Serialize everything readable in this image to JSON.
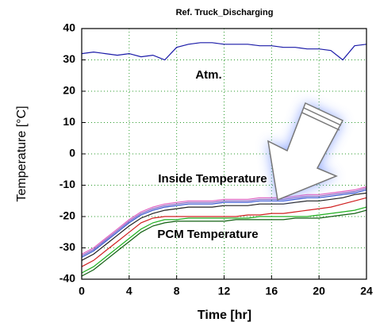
{
  "chart_data": {
    "type": "line",
    "title": "Ref. Truck_Discharging",
    "x_label": "Time [hr]",
    "y_label": "Temperature [°C]",
    "annotations": [
      "Atm.",
      "Inside Temperature",
      "PCM Temperature"
    ],
    "x": [
      0,
      1,
      2,
      3,
      4,
      5,
      6,
      7,
      8,
      9,
      10,
      11,
      12,
      13,
      14,
      15,
      16,
      17,
      18,
      19,
      20,
      21,
      22,
      23,
      24
    ],
    "xlim": [
      0,
      24
    ],
    "xticks": [
      0,
      4,
      8,
      12,
      16,
      20,
      24
    ],
    "ylim": [
      -40,
      40
    ],
    "yticks": [
      -40,
      -30,
      -20,
      -10,
      0,
      10,
      20,
      30,
      40
    ],
    "grid": true,
    "series": [
      {
        "color": "#1a1aa8",
        "values": [
          32,
          32.5,
          32,
          31.5,
          32,
          31,
          31.5,
          30,
          34,
          35,
          35.5,
          35.5,
          35,
          35,
          35,
          34.5,
          34.5,
          34,
          34,
          33.5,
          33.5,
          33,
          30,
          34.5,
          35
        ]
      },
      {
        "color": "#e060c0",
        "values": [
          -32,
          -30,
          -27,
          -24,
          -21,
          -18.5,
          -17,
          -16,
          -15.5,
          -15,
          -15,
          -15,
          -14.5,
          -14.5,
          -14.5,
          -14,
          -14,
          -14,
          -13.5,
          -13,
          -13,
          -12.5,
          -12,
          -11.5,
          -10.5
        ]
      },
      {
        "color": "#8060c0",
        "values": [
          -32.5,
          -30.5,
          -27.5,
          -24.5,
          -21.5,
          -19,
          -17.5,
          -16.5,
          -16,
          -15.5,
          -15.5,
          -15.5,
          -15,
          -15,
          -15,
          -14.5,
          -14.5,
          -14.5,
          -14,
          -13.5,
          -13.5,
          -13,
          -12.5,
          -12,
          -11
        ]
      },
      {
        "color": "#3050d0",
        "values": [
          -33,
          -31,
          -28,
          -25,
          -22,
          -19.5,
          -18,
          -17,
          -16.5,
          -16,
          -16,
          -16,
          -15.5,
          -15.5,
          -15.5,
          -15,
          -15,
          -15,
          -14.5,
          -14,
          -14,
          -13.5,
          -13,
          -12.5,
          -11.5
        ]
      },
      {
        "color": "#202020",
        "values": [
          -34,
          -32,
          -29,
          -26,
          -23,
          -20.5,
          -19,
          -18,
          -17.5,
          -17,
          -17,
          -17,
          -16.5,
          -16.5,
          -16.5,
          -16,
          -16,
          -16,
          -15.5,
          -15,
          -15,
          -14.5,
          -14,
          -13,
          -12.5
        ]
      },
      {
        "color": "#d02020",
        "values": [
          -36,
          -34,
          -31,
          -28,
          -25,
          -22,
          -20.5,
          -20,
          -20,
          -20,
          -20,
          -20,
          -20,
          -20,
          -19.5,
          -19.5,
          -19,
          -19,
          -18.5,
          -18,
          -17.5,
          -17,
          -16,
          -15,
          -14
        ]
      },
      {
        "color": "#20b020",
        "values": [
          -38,
          -36,
          -33,
          -30,
          -27,
          -24,
          -22,
          -21,
          -21,
          -20.5,
          -20.5,
          -20.5,
          -20.5,
          -20.5,
          -20.5,
          -20,
          -20,
          -20,
          -20,
          -20,
          -19.5,
          -19,
          -18.5,
          -18,
          -17
        ]
      },
      {
        "color": "#106010",
        "values": [
          -39,
          -37,
          -34,
          -31,
          -28,
          -25,
          -23,
          -22,
          -21.5,
          -21.5,
          -21.5,
          -21.5,
          -21.5,
          -21,
          -21,
          -21,
          -21,
          -21,
          -20.5,
          -20.5,
          -20.5,
          -20,
          -19.5,
          -19,
          -18
        ]
      }
    ]
  }
}
